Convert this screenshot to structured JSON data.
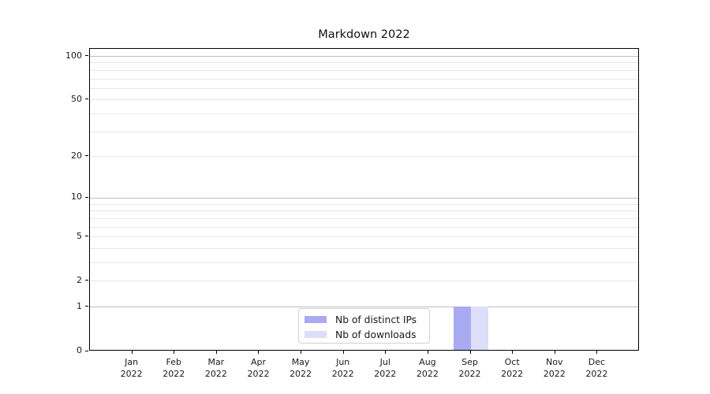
{
  "title": "Markdown 2022",
  "chart_data": {
    "type": "bar",
    "title": "Markdown 2022",
    "xlabel": "",
    "ylabel": "",
    "y_scale": "log1p",
    "y_ticks": [
      100,
      50,
      20,
      10,
      5,
      2,
      1,
      0
    ],
    "y_major_grid_values": [
      1,
      10,
      100
    ],
    "y_minor_grid_decades": [
      1,
      10
    ],
    "ylim": [
      0,
      113
    ],
    "grid": "horizontal",
    "categories": [
      {
        "month": "Jan",
        "year": "2022"
      },
      {
        "month": "Feb",
        "year": "2022"
      },
      {
        "month": "Mar",
        "year": "2022"
      },
      {
        "month": "Apr",
        "year": "2022"
      },
      {
        "month": "May",
        "year": "2022"
      },
      {
        "month": "Jun",
        "year": "2022"
      },
      {
        "month": "Jul",
        "year": "2022"
      },
      {
        "month": "Aug",
        "year": "2022"
      },
      {
        "month": "Sep",
        "year": "2022"
      },
      {
        "month": "Oct",
        "year": "2022"
      },
      {
        "month": "Nov",
        "year": "2022"
      },
      {
        "month": "Dec",
        "year": "2022"
      }
    ],
    "series": [
      {
        "name": "Nb of distinct IPs",
        "color": "#a8aaf2",
        "values": [
          0,
          0,
          0,
          0,
          0,
          0,
          0,
          0,
          1,
          0,
          0,
          0
        ]
      },
      {
        "name": "Nb of downloads",
        "color": "#dcdefa",
        "values": [
          0,
          0,
          0,
          0,
          0,
          0,
          0,
          0,
          1,
          0,
          0,
          0
        ]
      }
    ],
    "legend": {
      "position": "lower center"
    }
  },
  "colors": {
    "major_grid": "#bdbdbd",
    "minor_grid": "#e7e7ea",
    "spine": "#000000",
    "text": "#1a1a1a",
    "background": "#ffffff"
  }
}
